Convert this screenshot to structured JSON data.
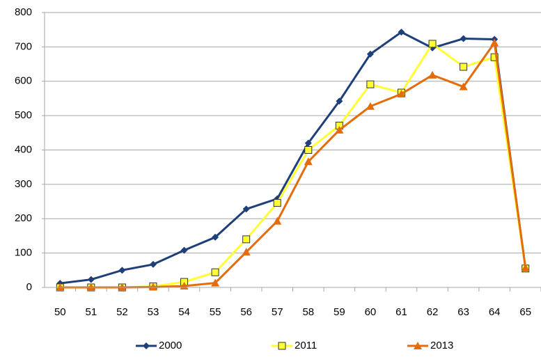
{
  "chart_data": {
    "type": "line",
    "categories": [
      "50",
      "51",
      "52",
      "53",
      "54",
      "55",
      "56",
      "57",
      "58",
      "59",
      "60",
      "61",
      "62",
      "63",
      "64",
      "65"
    ],
    "series": [
      {
        "name": "2000",
        "color": "#1f3f7a",
        "marker": "diamond",
        "values": [
          12,
          23,
          50,
          67,
          108,
          146,
          228,
          258,
          420,
          542,
          679,
          743,
          697,
          724,
          722,
          55
        ]
      },
      {
        "name": "2011",
        "color": "#ffff33",
        "marker": "square",
        "values": [
          0,
          0,
          0,
          3,
          16,
          44,
          140,
          246,
          400,
          471,
          591,
          567,
          709,
          642,
          670,
          55
        ]
      },
      {
        "name": "2013",
        "color": "#e46c0a",
        "marker": "triangle",
        "values": [
          0,
          0,
          0,
          1,
          4,
          13,
          103,
          193,
          366,
          458,
          527,
          563,
          618,
          584,
          712,
          57
        ]
      }
    ],
    "ylim": [
      0,
      800
    ],
    "yticks": [
      0,
      100,
      200,
      300,
      400,
      500,
      600,
      700,
      800
    ],
    "grid": true,
    "legend": "bottom"
  }
}
